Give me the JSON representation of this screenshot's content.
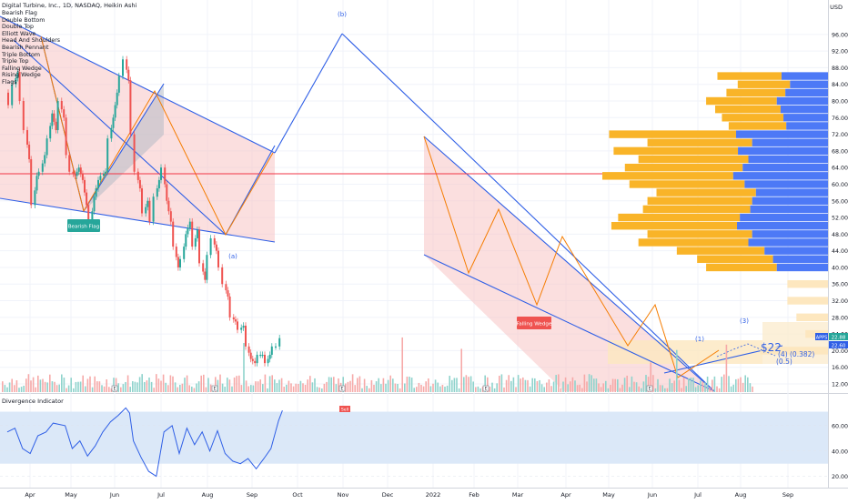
{
  "header": {
    "title": "Digital Turbine, Inc., 1D, NASDAQ, Heikin Ashi",
    "currency": "USD"
  },
  "pattern_list": [
    "Bearish Flag",
    "Double Bottom",
    "Double Top",
    "Elliott Wave",
    "Head And Shoulders",
    "Bearish Pennant",
    "Triple Bottom",
    "Triple Top",
    "Falling Wedge",
    "Rising Wedge",
    "Flags"
  ],
  "annotations": {
    "bearish_flag": "Bearish Flag",
    "falling_wedge": "Falling Wedge",
    "wave_a": "(a)",
    "wave_b": "(b)",
    "wave_1": "(1)",
    "wave_3": "(3)",
    "wave_4": "(4) (0.382)",
    "wave_4b": "(0.5)",
    "target": "$22",
    "sell_tag": "Sell",
    "event_e": "E"
  },
  "oscillator": {
    "label": "Divergence Indicator"
  },
  "colors": {
    "up": "#26a69a",
    "down": "#ef5350",
    "trendline": "#2f5fe6",
    "zigzag": "#f57c00",
    "channel_fill": "#f7c4c4",
    "profile_orange": "#f9b428",
    "profile_blue": "#4d79f6",
    "horizontal_line": "#f23645",
    "osc_line": "#2f5fe6",
    "osc_band": "#dbe8f8",
    "flag_label": "#26a69a",
    "wedge_label": "#ef5350",
    "ticker_badge": "#2f5fe6",
    "price_badge": "#26a69a"
  },
  "chart_data": {
    "type": "candlestick",
    "xlabel": "",
    "ylabel": "",
    "x_ticks": [
      "Apr",
      "May",
      "Jun",
      "Jul",
      "Aug",
      "Sep",
      "Oct",
      "Nov",
      "Dec",
      "2022",
      "Feb",
      "Mar",
      "Apr",
      "May",
      "Jun",
      "Jul",
      "Aug",
      "Sep"
    ],
    "y_ticks": [
      12,
      16,
      20,
      24,
      28,
      32,
      36,
      40,
      44,
      48,
      52,
      56,
      60,
      64,
      68,
      72,
      76,
      80,
      84,
      88,
      92,
      96
    ],
    "ylim": [
      10.6,
      97.8
    ],
    "price_badges": [
      {
        "label": "APPS",
        "value": "22.88"
      },
      {
        "label": "",
        "value": "22.60"
      }
    ],
    "horizontal_level": 62.5,
    "price_path": [
      {
        "date": "2021-03-22",
        "price": 82
      },
      {
        "date": "2021-03-29",
        "price": 79
      },
      {
        "date": "2021-04-05",
        "price": 84
      },
      {
        "date": "2021-04-12",
        "price": 87
      },
      {
        "date": "2021-04-19",
        "price": 80
      },
      {
        "date": "2021-04-26",
        "price": 73
      },
      {
        "date": "2021-05-03",
        "price": 66
      },
      {
        "date": "2021-05-10",
        "price": 55
      },
      {
        "date": "2021-05-17",
        "price": 62
      },
      {
        "date": "2021-05-24",
        "price": 63
      },
      {
        "date": "2021-06-01",
        "price": 67
      },
      {
        "date": "2021-06-07",
        "price": 71
      },
      {
        "date": "2021-06-14",
        "price": 77
      },
      {
        "date": "2021-06-21",
        "price": 73
      },
      {
        "date": "2021-06-28",
        "price": 80
      },
      {
        "date": "2021-07-06",
        "price": 76
      },
      {
        "date": "2021-07-12",
        "price": 67
      },
      {
        "date": "2021-07-19",
        "price": 63
      },
      {
        "date": "2021-07-26",
        "price": 62
      },
      {
        "date": "2021-08-02",
        "price": 64
      },
      {
        "date": "2021-08-09",
        "price": 61
      },
      {
        "date": "2021-08-16",
        "price": 55
      },
      {
        "date": "2021-08-23",
        "price": 50
      },
      {
        "date": "2021-08-30",
        "price": 57
      },
      {
        "date": "2021-09-07",
        "price": 61
      },
      {
        "date": "2021-09-13",
        "price": 62
      },
      {
        "date": "2021-09-20",
        "price": 63
      },
      {
        "date": "2021-09-27",
        "price": 71
      },
      {
        "date": "2021-10-04",
        "price": 76
      },
      {
        "date": "2021-10-11",
        "price": 82
      },
      {
        "date": "2021-10-18",
        "price": 86
      },
      {
        "date": "2021-10-25",
        "price": 90
      },
      {
        "date": "2021-11-01",
        "price": 85
      },
      {
        "date": "2021-11-08",
        "price": 72
      },
      {
        "date": "2021-11-15",
        "price": 63
      },
      {
        "date": "2021-11-22",
        "price": 59
      },
      {
        "date": "2021-11-29",
        "price": 53
      },
      {
        "date": "2021-12-06",
        "price": 56
      },
      {
        "date": "2021-12-13",
        "price": 51
      },
      {
        "date": "2021-12-20",
        "price": 57
      },
      {
        "date": "2021-12-27",
        "price": 61
      },
      {
        "date": "2022-01-03",
        "price": 64
      },
      {
        "date": "2022-01-10",
        "price": 56
      },
      {
        "date": "2022-01-18",
        "price": 51
      },
      {
        "date": "2022-01-24",
        "price": 45
      },
      {
        "date": "2022-01-31",
        "price": 40
      },
      {
        "date": "2022-02-07",
        "price": 42
      },
      {
        "date": "2022-02-14",
        "price": 48
      },
      {
        "date": "2022-02-22",
        "price": 51
      },
      {
        "date": "2022-02-28",
        "price": 45
      },
      {
        "date": "2022-03-07",
        "price": 49
      },
      {
        "date": "2022-03-14",
        "price": 41
      },
      {
        "date": "2022-03-21",
        "price": 37
      },
      {
        "date": "2022-03-28",
        "price": 43
      },
      {
        "date": "2022-04-04",
        "price": 47
      },
      {
        "date": "2022-04-11",
        "price": 44
      },
      {
        "date": "2022-04-18",
        "price": 40
      },
      {
        "date": "2022-04-25",
        "price": 36
      },
      {
        "date": "2022-05-02",
        "price": 33
      },
      {
        "date": "2022-05-09",
        "price": 28
      },
      {
        "date": "2022-05-16",
        "price": 27
      },
      {
        "date": "2022-05-23",
        "price": 25
      },
      {
        "date": "2022-05-31",
        "price": 26
      },
      {
        "date": "2022-06-06",
        "price": 21
      },
      {
        "date": "2022-06-13",
        "price": 18
      },
      {
        "date": "2022-06-21",
        "price": 17
      },
      {
        "date": "2022-06-27",
        "price": 19
      },
      {
        "date": "2022-07-05",
        "price": 19
      },
      {
        "date": "2022-07-11",
        "price": 17
      },
      {
        "date": "2022-07-18",
        "price": 19
      },
      {
        "date": "2022-07-25",
        "price": 21
      },
      {
        "date": "2022-08-01",
        "price": 21
      },
      {
        "date": "2022-08-08",
        "price": 23
      }
    ],
    "price_profile": [
      {
        "price": 86,
        "value": 0.49
      },
      {
        "price": 84,
        "value": 0.4
      },
      {
        "price": 82,
        "value": 0.45
      },
      {
        "price": 80,
        "value": 0.54
      },
      {
        "price": 78,
        "value": 0.5
      },
      {
        "price": 76,
        "value": 0.47
      },
      {
        "price": 74,
        "value": 0.44
      },
      {
        "price": 72,
        "value": 0.97
      },
      {
        "price": 70,
        "value": 0.8
      },
      {
        "price": 68,
        "value": 0.95
      },
      {
        "price": 66,
        "value": 0.84
      },
      {
        "price": 64,
        "value": 0.9
      },
      {
        "price": 62,
        "value": 1.0
      },
      {
        "price": 60,
        "value": 0.88
      },
      {
        "price": 58,
        "value": 0.76
      },
      {
        "price": 56,
        "value": 0.8
      },
      {
        "price": 54,
        "value": 0.82
      },
      {
        "price": 52,
        "value": 0.93
      },
      {
        "price": 50,
        "value": 0.96
      },
      {
        "price": 48,
        "value": 0.8
      },
      {
        "price": 46,
        "value": 0.84
      },
      {
        "price": 44,
        "value": 0.67
      },
      {
        "price": 42,
        "value": 0.58
      },
      {
        "price": 40,
        "value": 0.54
      }
    ],
    "oscillator_path": [
      {
        "date": "2021-03-22",
        "value": 55
      },
      {
        "date": "2021-04-05",
        "value": 58
      },
      {
        "date": "2021-04-19",
        "value": 42
      },
      {
        "date": "2021-05-03",
        "value": 38
      },
      {
        "date": "2021-05-17",
        "value": 52
      },
      {
        "date": "2021-06-01",
        "value": 55
      },
      {
        "date": "2021-06-14",
        "value": 62
      },
      {
        "date": "2021-07-06",
        "value": 60
      },
      {
        "date": "2021-07-19",
        "value": 42
      },
      {
        "date": "2021-08-02",
        "value": 48
      },
      {
        "date": "2021-08-16",
        "value": 36
      },
      {
        "date": "2021-08-30",
        "value": 44
      },
      {
        "date": "2021-09-13",
        "value": 55
      },
      {
        "date": "2021-09-27",
        "value": 63
      },
      {
        "date": "2021-10-11",
        "value": 68
      },
      {
        "date": "2021-10-25",
        "value": 74
      },
      {
        "date": "2021-11-01",
        "value": 70
      },
      {
        "date": "2021-11-08",
        "value": 48
      },
      {
        "date": "2021-11-22",
        "value": 35
      },
      {
        "date": "2021-12-06",
        "value": 24
      },
      {
        "date": "2021-12-20",
        "value": 20
      },
      {
        "date": "2022-01-03",
        "value": 55
      },
      {
        "date": "2022-01-18",
        "value": 60
      },
      {
        "date": "2022-01-31",
        "value": 38
      },
      {
        "date": "2022-02-14",
        "value": 58
      },
      {
        "date": "2022-02-28",
        "value": 45
      },
      {
        "date": "2022-03-14",
        "value": 55
      },
      {
        "date": "2022-03-28",
        "value": 40
      },
      {
        "date": "2022-04-11",
        "value": 56
      },
      {
        "date": "2022-04-25",
        "value": 38
      },
      {
        "date": "2022-05-09",
        "value": 32
      },
      {
        "date": "2022-05-23",
        "value": 30
      },
      {
        "date": "2022-06-06",
        "value": 34
      },
      {
        "date": "2022-06-21",
        "value": 26
      },
      {
        "date": "2022-07-05",
        "value": 34
      },
      {
        "date": "2022-07-18",
        "value": 42
      },
      {
        "date": "2022-08-01",
        "value": 64
      },
      {
        "date": "2022-08-08",
        "value": 72
      }
    ],
    "oscillator_ticks": [
      20,
      40,
      60
    ],
    "oscillator_ylim": [
      14,
      80
    ],
    "oscillator_band": [
      30,
      71
    ],
    "grid": true
  }
}
